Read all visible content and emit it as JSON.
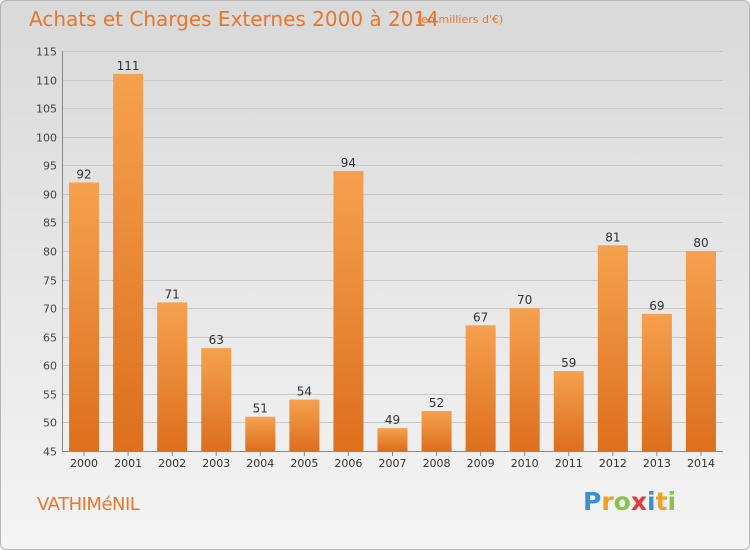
{
  "header": {
    "title": "Achats et Charges Externes 2000 à 2014",
    "unit": "(en milliers d'€)"
  },
  "footer": {
    "commune": "VATHIMéNIL",
    "logo_letters": [
      {
        "ch": "P",
        "color": "#3a8fd6"
      },
      {
        "ch": "r",
        "color": "#f0a020"
      },
      {
        "ch": "o",
        "color": "#8bc34a"
      },
      {
        "ch": "x",
        "color": "#e53935"
      },
      {
        "ch": "i",
        "color": "#3a8fd6"
      },
      {
        "ch": "t",
        "color": "#f0a020"
      },
      {
        "ch": "i",
        "color": "#8bc34a"
      }
    ]
  },
  "colors": {
    "bar_light": "#f5a14f",
    "bar_dark": "#dd6f1d",
    "accent": "#e8762b",
    "grid": "#c8c8c8"
  },
  "chart_data": {
    "type": "bar",
    "title": "Achats et Charges Externes 2000 à 2014",
    "subtitle": "(en milliers d'€)",
    "categories": [
      "2000",
      "2001",
      "2002",
      "2003",
      "2004",
      "2005",
      "2006",
      "2007",
      "2008",
      "2009",
      "2010",
      "2011",
      "2012",
      "2013",
      "2014"
    ],
    "values": [
      92,
      111,
      71,
      63,
      51,
      54,
      94,
      49,
      52,
      67,
      70,
      59,
      81,
      69,
      80
    ],
    "value_labels": [
      "92",
      "111",
      "71",
      "63",
      "51",
      "54",
      "94",
      "49",
      "52",
      "67",
      "70",
      "59",
      "81",
      "69",
      "80"
    ],
    "ylim": [
      45,
      115
    ],
    "yticks": [
      45,
      50,
      55,
      60,
      65,
      70,
      75,
      80,
      85,
      90,
      95,
      100,
      105,
      110,
      115
    ],
    "ytick_labels": [
      "45",
      "50",
      "55",
      "60",
      "65",
      "70",
      "75",
      "80",
      "85",
      "90",
      "95",
      "100",
      "105",
      "110",
      "115"
    ],
    "grid": true,
    "legend": "none"
  }
}
